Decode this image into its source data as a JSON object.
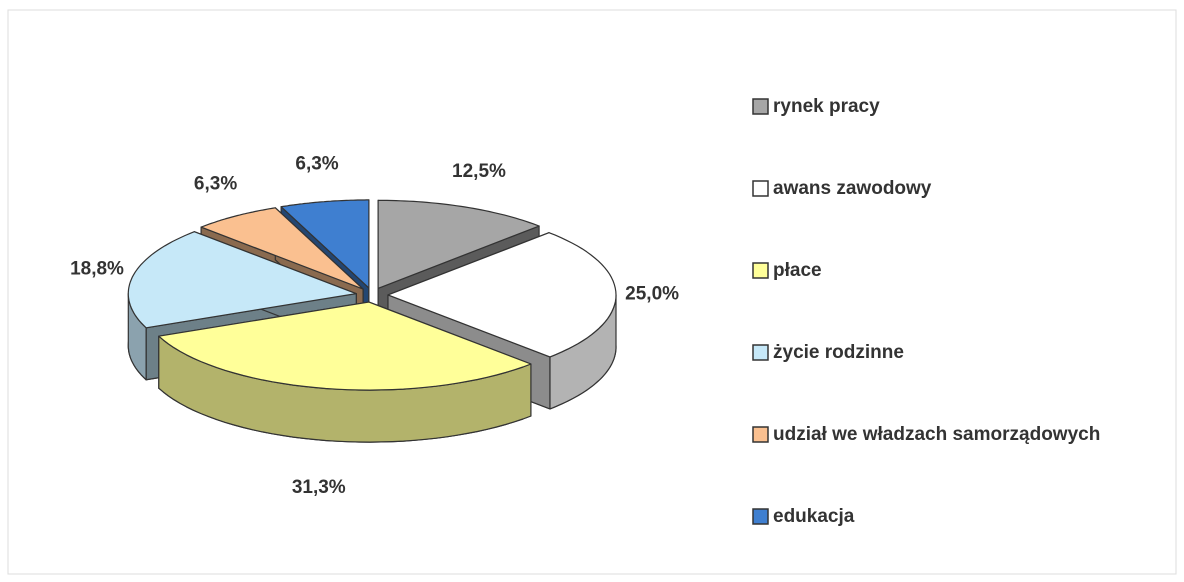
{
  "chart_data": {
    "type": "pie3d",
    "categories": [
      "rynek pracy",
      "awans zawodowy",
      "płace",
      "życie rodzinne",
      "udział we władzach samorządowych",
      "edukacja"
    ],
    "values": [
      12.5,
      25.0,
      31.3,
      18.8,
      6.3,
      6.3
    ],
    "value_labels": [
      "12,5%",
      "25,0%",
      "31,3%",
      "18,8%",
      "6,3%",
      "6,3%"
    ],
    "colors": [
      "#a6a6a6",
      "#ffffff",
      "#ffff99",
      "#c6e8f8",
      "#fac090",
      "#3f7fd0"
    ],
    "legend": "right"
  }
}
